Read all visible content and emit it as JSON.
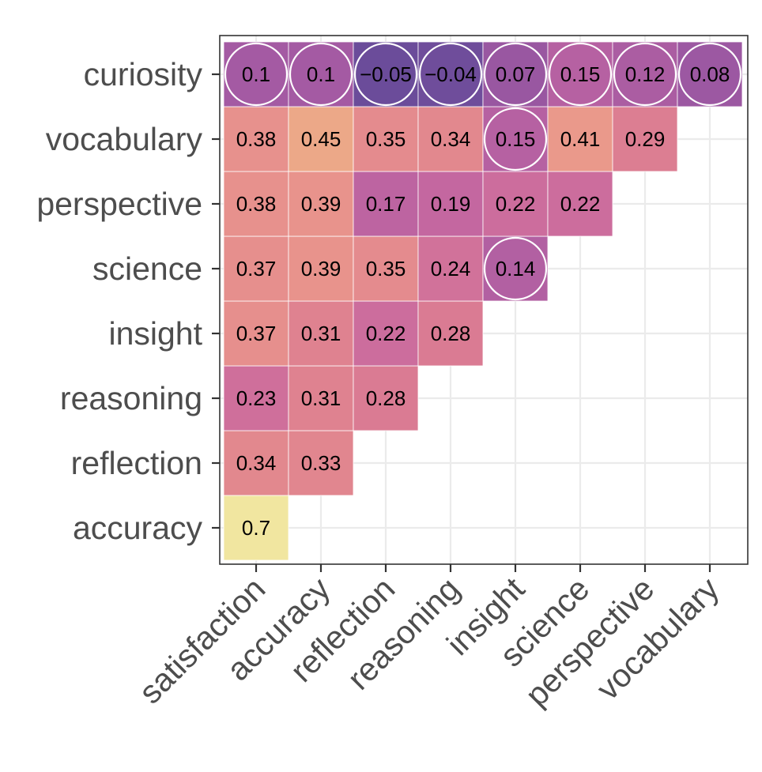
{
  "chart_data": {
    "type": "heatmap",
    "title": "",
    "xlabel": "",
    "ylabel": "",
    "x_categories": [
      "satisfaction",
      "accuracy",
      "reflection",
      "reasoning",
      "insight",
      "science",
      "perspective",
      "vocabulary"
    ],
    "y_categories": [
      "accuracy",
      "reflection",
      "reasoning",
      "insight",
      "science",
      "perspective",
      "vocabulary",
      "curiosity"
    ],
    "cells": [
      {
        "x": "satisfaction",
        "y": "accuracy",
        "value": 0.7,
        "label": "0.7",
        "circled": false
      },
      {
        "x": "satisfaction",
        "y": "reflection",
        "value": 0.34,
        "label": "0.34",
        "circled": false
      },
      {
        "x": "accuracy",
        "y": "reflection",
        "value": 0.33,
        "label": "0.33",
        "circled": false
      },
      {
        "x": "satisfaction",
        "y": "reasoning",
        "value": 0.23,
        "label": "0.23",
        "circled": false
      },
      {
        "x": "accuracy",
        "y": "reasoning",
        "value": 0.31,
        "label": "0.31",
        "circled": false
      },
      {
        "x": "reflection",
        "y": "reasoning",
        "value": 0.28,
        "label": "0.28",
        "circled": false
      },
      {
        "x": "satisfaction",
        "y": "insight",
        "value": 0.37,
        "label": "0.37",
        "circled": false
      },
      {
        "x": "accuracy",
        "y": "insight",
        "value": 0.31,
        "label": "0.31",
        "circled": false
      },
      {
        "x": "reflection",
        "y": "insight",
        "value": 0.22,
        "label": "0.22",
        "circled": false
      },
      {
        "x": "reasoning",
        "y": "insight",
        "value": 0.28,
        "label": "0.28",
        "circled": false
      },
      {
        "x": "satisfaction",
        "y": "science",
        "value": 0.37,
        "label": "0.37",
        "circled": false
      },
      {
        "x": "accuracy",
        "y": "science",
        "value": 0.39,
        "label": "0.39",
        "circled": false
      },
      {
        "x": "reflection",
        "y": "science",
        "value": 0.35,
        "label": "0.35",
        "circled": false
      },
      {
        "x": "reasoning",
        "y": "science",
        "value": 0.24,
        "label": "0.24",
        "circled": false
      },
      {
        "x": "insight",
        "y": "science",
        "value": 0.14,
        "label": "0.14",
        "circled": true
      },
      {
        "x": "satisfaction",
        "y": "perspective",
        "value": 0.38,
        "label": "0.38",
        "circled": false
      },
      {
        "x": "accuracy",
        "y": "perspective",
        "value": 0.39,
        "label": "0.39",
        "circled": false
      },
      {
        "x": "reflection",
        "y": "perspective",
        "value": 0.17,
        "label": "0.17",
        "circled": false
      },
      {
        "x": "reasoning",
        "y": "perspective",
        "value": 0.19,
        "label": "0.19",
        "circled": false
      },
      {
        "x": "insight",
        "y": "perspective",
        "value": 0.22,
        "label": "0.22",
        "circled": false
      },
      {
        "x": "science",
        "y": "perspective",
        "value": 0.22,
        "label": "0.22",
        "circled": false
      },
      {
        "x": "satisfaction",
        "y": "vocabulary",
        "value": 0.38,
        "label": "0.38",
        "circled": false
      },
      {
        "x": "accuracy",
        "y": "vocabulary",
        "value": 0.45,
        "label": "0.45",
        "circled": false
      },
      {
        "x": "reflection",
        "y": "vocabulary",
        "value": 0.35,
        "label": "0.35",
        "circled": false
      },
      {
        "x": "reasoning",
        "y": "vocabulary",
        "value": 0.34,
        "label": "0.34",
        "circled": false
      },
      {
        "x": "insight",
        "y": "vocabulary",
        "value": 0.15,
        "label": "0.15",
        "circled": true
      },
      {
        "x": "science",
        "y": "vocabulary",
        "value": 0.41,
        "label": "0.41",
        "circled": false
      },
      {
        "x": "perspective",
        "y": "vocabulary",
        "value": 0.29,
        "label": "0.29",
        "circled": false
      },
      {
        "x": "satisfaction",
        "y": "curiosity",
        "value": 0.1,
        "label": "0.1",
        "circled": true
      },
      {
        "x": "accuracy",
        "y": "curiosity",
        "value": 0.1,
        "label": "0.1",
        "circled": true
      },
      {
        "x": "reflection",
        "y": "curiosity",
        "value": -0.05,
        "label": "−0.05",
        "circled": true
      },
      {
        "x": "reasoning",
        "y": "curiosity",
        "value": -0.04,
        "label": "−0.04",
        "circled": true
      },
      {
        "x": "insight",
        "y": "curiosity",
        "value": 0.07,
        "label": "0.07",
        "circled": true
      },
      {
        "x": "science",
        "y": "curiosity",
        "value": 0.15,
        "label": "0.15",
        "circled": true
      },
      {
        "x": "perspective",
        "y": "curiosity",
        "value": 0.12,
        "label": "0.12",
        "circled": true
      },
      {
        "x": "vocabulary",
        "y": "curiosity",
        "value": 0.08,
        "label": "0.08",
        "circled": true
      }
    ],
    "color_scale": {
      "name": "plasma-like",
      "stops": [
        {
          "value": -0.05,
          "color": "#6b4c9a"
        },
        {
          "value": 0.1,
          "color": "#a45aa3"
        },
        {
          "value": 0.2,
          "color": "#c868a0"
        },
        {
          "value": 0.3,
          "color": "#de8090"
        },
        {
          "value": 0.4,
          "color": "#e9958c"
        },
        {
          "value": 0.45,
          "color": "#eca888"
        },
        {
          "value": 0.7,
          "color": "#f1e6a0"
        }
      ]
    },
    "grid": true,
    "legend": "none"
  },
  "style": {
    "panel_border": "#333333",
    "grid_color": "#ebebeb",
    "tick_color": "#333333",
    "tick_label_color": "#4d4d4d",
    "cell_border": "#ffffff",
    "circle_stroke": "#ffffff"
  }
}
